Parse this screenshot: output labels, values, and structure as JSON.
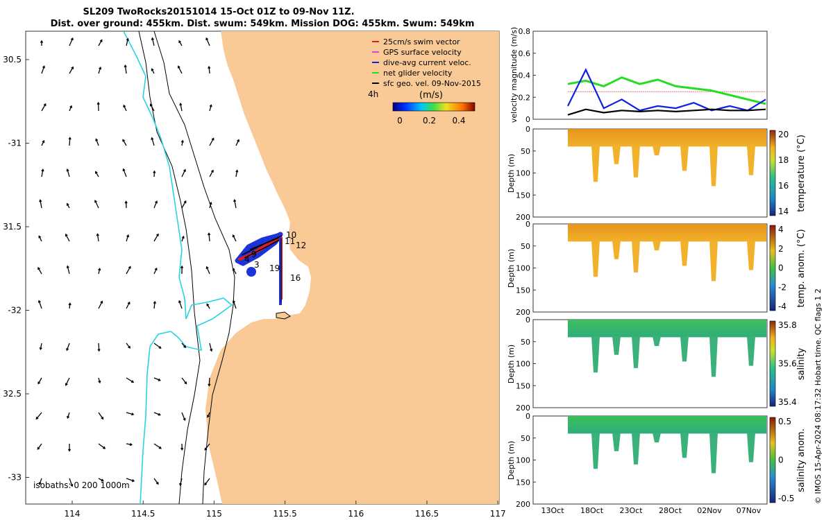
{
  "title": {
    "line1": "SL209 TwoRocks20151014 15-Oct 01Z to 09-Nov 11Z.",
    "line2": "Dist. over ground: 455km. Dist. swum: 549km. Mission DOG: 455km. Swum: 549km"
  },
  "map": {
    "lat_ticks": [
      "30.5",
      "-31",
      "31.5",
      "-32",
      "32.5",
      "-33"
    ],
    "lon_ticks": [
      "114",
      "114.5",
      "115",
      "115.5",
      "116",
      "116.5",
      "117"
    ],
    "legend": [
      {
        "label": "25cm/s swim vector",
        "color": "#d62020"
      },
      {
        "label": "GPS surface velocity",
        "color": "#e040e0"
      },
      {
        "label": "dive-avg current veloc.",
        "color": "#1020e0"
      },
      {
        "label": "net glider velocity",
        "color": "#20e020"
      },
      {
        "label": "sfc geo. vel. 09-Nov-2015",
        "color": "#000000"
      }
    ],
    "lag_label": "4h",
    "colorbar_unit": "(m/s)",
    "colorbar_ticks": [
      "0",
      "0.2",
      "0.4"
    ],
    "isobaths": "isobaths: 0   200  1000m",
    "day_labels": [
      "10",
      "12",
      "11",
      "9",
      "4",
      "3",
      "19",
      "16"
    ],
    "land_color": "#f9c996",
    "shelf_color": "#26d4e0"
  },
  "velocity": {
    "ylabel": "velocity magnitude (m/s)",
    "yticks": [
      "0",
      "0.2",
      "0.4",
      "0.6",
      "0.8"
    ]
  },
  "sections": [
    {
      "label": "temperature (°C)",
      "ticks": [
        "14",
        "16",
        "18",
        "20"
      ]
    },
    {
      "label": "temp. anom. (°C)",
      "ticks": [
        "-4",
        "-2",
        "0",
        "2",
        "4"
      ]
    },
    {
      "label": "salinity",
      "ticks": [
        "35.4",
        "35.6",
        "35.8"
      ]
    },
    {
      "label": "salinity anom.",
      "ticks": [
        "-0.5",
        "0",
        "0.5"
      ]
    }
  ],
  "depth_label": "Depth (m)",
  "depth_ticks": [
    "0",
    "50",
    "100",
    "150",
    "200"
  ],
  "time_ticks": [
    "13Oct",
    "18Oct",
    "23Oct",
    "28Oct",
    "02Nov",
    "07Nov"
  ],
  "credit": "© IMOS 15-Apr-2024 08:17:32 Hobart time. QC flags 1  2",
  "chart_data": {
    "type": "line",
    "title": "SL209 TwoRocks20151014 15-Oct 01Z to 09-Nov 11Z.",
    "ylabel": "velocity magnitude (m/s)",
    "ylim": [
      0,
      0.8
    ],
    "x": [
      "18Oct",
      "20Oct",
      "22Oct",
      "24Oct",
      "26Oct",
      "28Oct",
      "30Oct",
      "01Nov",
      "03Nov",
      "05Nov",
      "07Nov",
      "09Nov"
    ],
    "series": [
      {
        "name": "25cm/s swim vector",
        "values": [
          0.25,
          0.25,
          0.25,
          0.25,
          0.25,
          0.25,
          0.25,
          0.25,
          0.25,
          0.25,
          0.25,
          0.25
        ]
      },
      {
        "name": "net glider velocity",
        "values": [
          0.32,
          0.35,
          0.3,
          0.38,
          0.32,
          0.36,
          0.3,
          0.28,
          0.26,
          0.22,
          0.18,
          0.14
        ]
      },
      {
        "name": "dive-avg current veloc.",
        "values": [
          0.12,
          0.45,
          0.1,
          0.18,
          0.08,
          0.12,
          0.1,
          0.15,
          0.08,
          0.12,
          0.08,
          0.18
        ]
      },
      {
        "name": "sfc geo. vel.",
        "values": [
          0.04,
          0.09,
          0.06,
          0.08,
          0.07,
          0.08,
          0.07,
          0.08,
          0.09,
          0.08,
          0.08,
          0.09
        ]
      }
    ]
  }
}
